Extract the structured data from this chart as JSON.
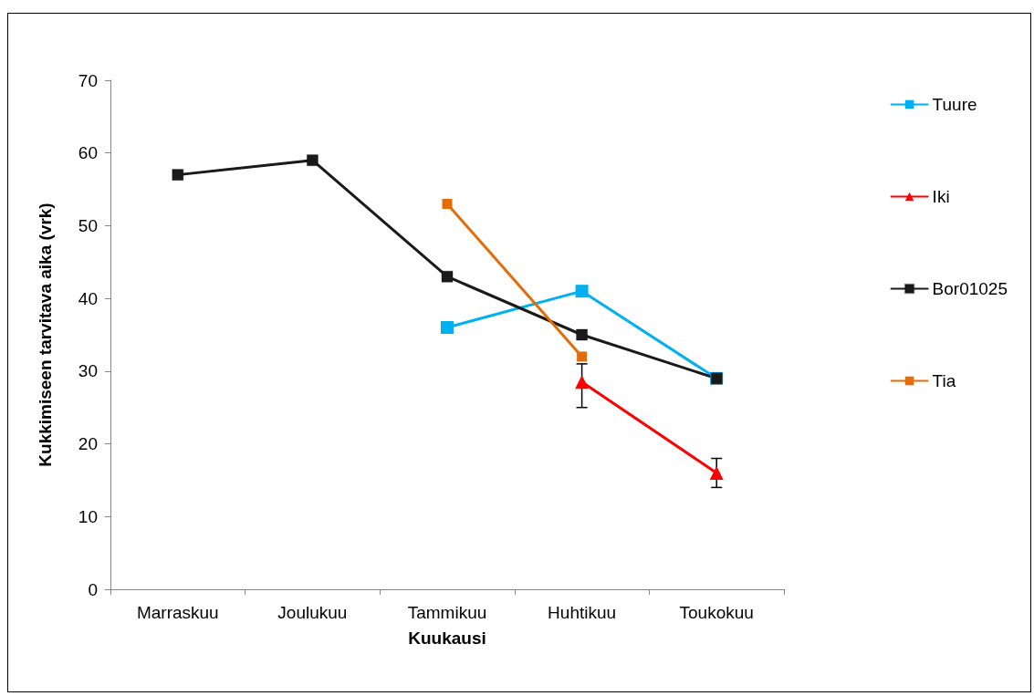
{
  "chart_data": {
    "type": "line",
    "xlabel": "Kuukausi",
    "ylabel": "Kukkimiseen tarvitava aika (vrk)",
    "categories": [
      "Marraskuu",
      "Joulukuu",
      "Tammikuu",
      "Huhtikuu",
      "Toukokuu"
    ],
    "series": [
      {
        "name": "Tuure",
        "color": "#00b0f0",
        "marker": "square",
        "values": [
          null,
          null,
          36,
          41,
          29
        ]
      },
      {
        "name": "Iki",
        "color": "#ff0000",
        "marker": "triangle",
        "values": [
          null,
          null,
          null,
          28.5,
          16
        ],
        "errors": [
          null,
          null,
          null,
          [
            25,
            31
          ],
          [
            14,
            18
          ]
        ]
      },
      {
        "name": "Bor01025",
        "color": "#1a1a1a",
        "marker": "square",
        "values": [
          57,
          59,
          43,
          35,
          29
        ]
      },
      {
        "name": "Tia",
        "color": "#e46c0a",
        "marker": "square",
        "values": [
          null,
          null,
          53,
          32,
          null
        ]
      }
    ],
    "ylim": [
      0,
      70
    ],
    "yticks": [
      0,
      10,
      20,
      30,
      40,
      50,
      60,
      70
    ],
    "grid": false,
    "legend": "right",
    "line_style": "solid"
  }
}
